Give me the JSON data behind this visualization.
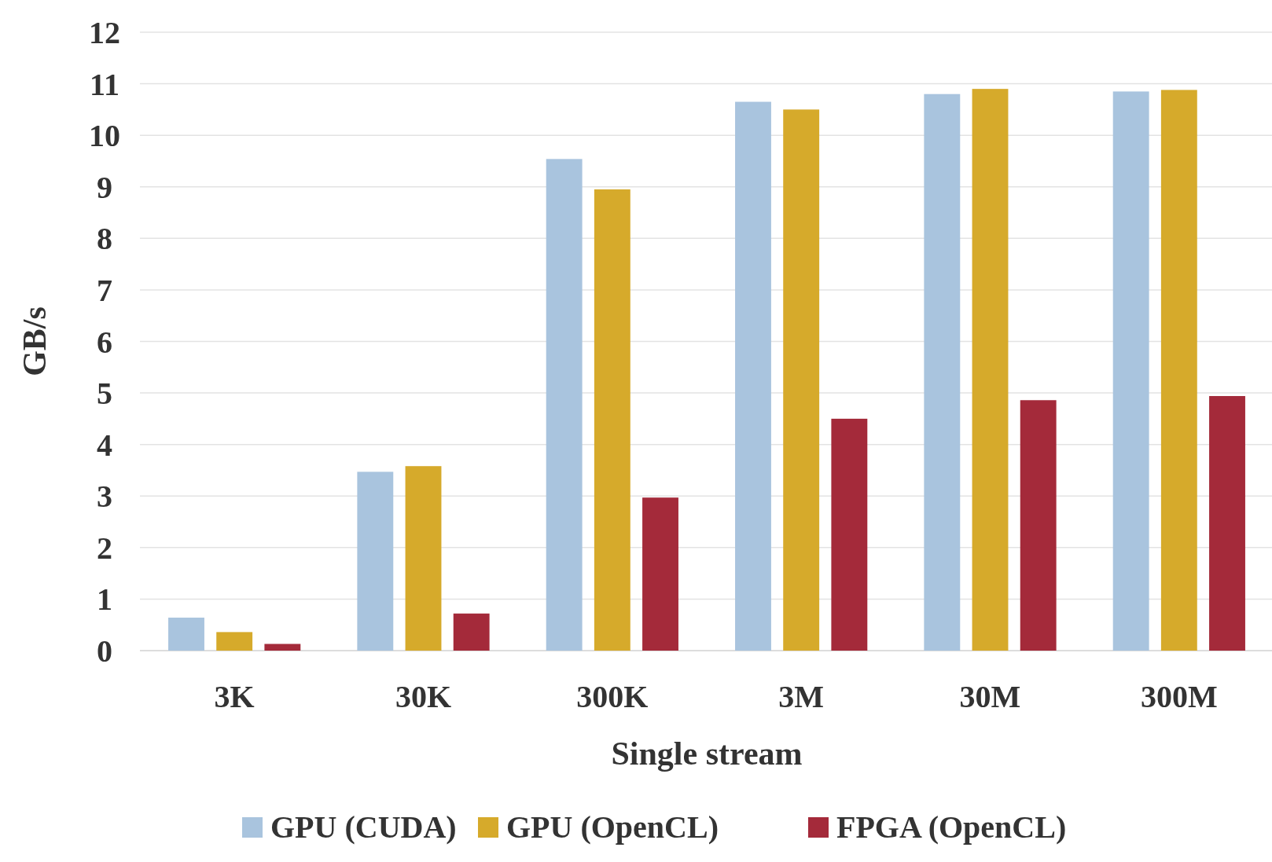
{
  "chart_data": {
    "type": "bar",
    "xlabel": "Single stream",
    "ylabel": "GB/s",
    "categories": [
      "3K",
      "30K",
      "300K",
      "3M",
      "30M",
      "300M"
    ],
    "series": [
      {
        "name": "GPU (CUDA)",
        "color": "#a9c4de",
        "values": [
          0.64,
          3.47,
          9.54,
          10.65,
          10.8,
          10.85
        ]
      },
      {
        "name": "GPU (OpenCL)",
        "color": "#d6aa2b",
        "values": [
          0.36,
          3.58,
          8.95,
          10.5,
          10.9,
          10.88
        ]
      },
      {
        "name": "FPGA (OpenCL)",
        "color": "#a42a3a",
        "values": [
          0.13,
          0.72,
          2.97,
          4.5,
          4.86,
          4.94
        ]
      }
    ],
    "ylim": [
      0,
      12
    ],
    "yticks": [
      0,
      1,
      2,
      3,
      4,
      5,
      6,
      7,
      8,
      9,
      10,
      11,
      12
    ],
    "grid": "y",
    "legend": "bottom"
  }
}
